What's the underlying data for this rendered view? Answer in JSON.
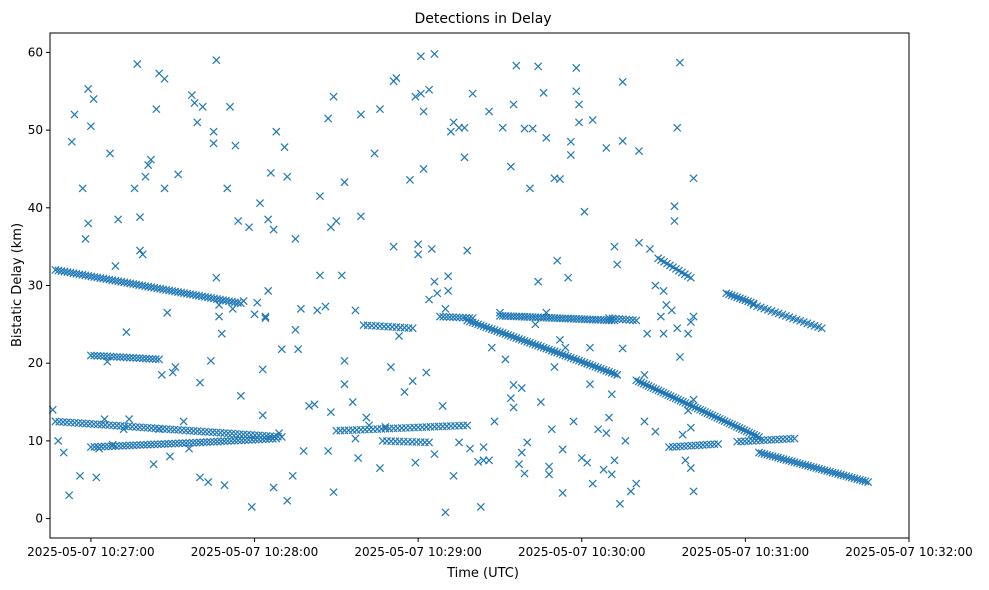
{
  "chart_data": {
    "type": "scatter",
    "title": "Detections in Delay",
    "xlabel": "Time (UTC)",
    "ylabel": "Bistatic Delay (km)",
    "marker": "x",
    "color": "#1f77b4",
    "xlim_seconds_from_102700": [
      -15,
      300
    ],
    "ylim": [
      -2.5,
      62.5
    ],
    "x_ticks": [
      {
        "value": 0,
        "label": "2025-05-07 10:27:00"
      },
      {
        "value": 60,
        "label": "2025-05-07 10:28:00"
      },
      {
        "value": 120,
        "label": "2025-05-07 10:29:00"
      },
      {
        "value": 180,
        "label": "2025-05-07 10:30:00"
      },
      {
        "value": 240,
        "label": "2025-05-07 10:31:00"
      },
      {
        "value": 300,
        "label": "2025-05-07 10:32:00"
      }
    ],
    "y_ticks": [
      {
        "value": 0,
        "label": "0"
      },
      {
        "value": 10,
        "label": "10"
      },
      {
        "value": 20,
        "label": "20"
      },
      {
        "value": 30,
        "label": "30"
      },
      {
        "value": 40,
        "label": "40"
      },
      {
        "value": 50,
        "label": "50"
      },
      {
        "value": 60,
        "label": "60"
      }
    ],
    "tracks": [
      {
        "name": "track-a",
        "t_start": -13,
        "t_end": 55,
        "y_start": 32,
        "y_end": 27.7,
        "step": 1.1
      },
      {
        "name": "track-b",
        "t_start": -13,
        "t_end": 70,
        "y_start": 12.5,
        "y_end": 10.5,
        "step": 1.4
      },
      {
        "name": "track-c",
        "t_start": 0,
        "t_end": 25,
        "y_start": 21,
        "y_end": 20.5,
        "step": 1.2
      },
      {
        "name": "track-d",
        "t_start": 0,
        "t_end": 40,
        "y_start": 9.2,
        "y_end": 9.8,
        "step": 1.3
      },
      {
        "name": "track-e",
        "t_start": 40,
        "t_end": 68,
        "y_start": 9.8,
        "y_end": 10.3,
        "step": 1.3
      },
      {
        "name": "track-f",
        "t_start": 90,
        "t_end": 138,
        "y_start": 11.3,
        "y_end": 12,
        "step": 1.5
      },
      {
        "name": "track-g",
        "t_start": 107,
        "t_end": 124,
        "y_start": 10,
        "y_end": 9.8,
        "step": 1.5
      },
      {
        "name": "track-h",
        "t_start": 100,
        "t_end": 118,
        "y_start": 24.9,
        "y_end": 24.5,
        "step": 1.5
      },
      {
        "name": "track-i",
        "t_start": 128,
        "t_end": 140,
        "y_start": 26,
        "y_end": 25.8,
        "step": 1.2
      },
      {
        "name": "track-j",
        "t_start": 138,
        "t_end": 170,
        "y_start": 25.5,
        "y_end": 21.5,
        "step": 1.0
      },
      {
        "name": "track-k",
        "t_start": 150,
        "t_end": 192,
        "y_start": 26.1,
        "y_end": 25.5,
        "step": 1.0
      },
      {
        "name": "track-l",
        "t_start": 170,
        "t_end": 193,
        "y_start": 21.5,
        "y_end": 18.5,
        "step": 1.0
      },
      {
        "name": "track-m",
        "t_start": 200,
        "t_end": 245,
        "y_start": 17.8,
        "y_end": 10.5,
        "step": 0.9
      },
      {
        "name": "track-n",
        "t_start": 245,
        "t_end": 285,
        "y_start": 8.5,
        "y_end": 4.7,
        "step": 1.0
      },
      {
        "name": "track-o",
        "t_start": 208,
        "t_end": 220,
        "y_start": 33.5,
        "y_end": 31,
        "step": 1.1
      },
      {
        "name": "track-p",
        "t_start": 233,
        "t_end": 243,
        "y_start": 29,
        "y_end": 27.7,
        "step": 1.0
      },
      {
        "name": "track-q",
        "t_start": 243,
        "t_end": 268,
        "y_start": 27.5,
        "y_end": 24.5,
        "step": 1.3
      },
      {
        "name": "track-r",
        "t_start": 212,
        "t_end": 230,
        "y_start": 9.2,
        "y_end": 9.6,
        "step": 1.4
      },
      {
        "name": "track-s",
        "t_start": 237,
        "t_end": 258,
        "y_start": 9.9,
        "y_end": 10.3,
        "step": 1.4
      },
      {
        "name": "track-t",
        "t_start": 190,
        "t_end": 200,
        "y_start": 25.8,
        "y_end": 25.5,
        "step": 1.2
      }
    ],
    "scatter_points": [
      [
        -14,
        14
      ],
      [
        -12,
        10
      ],
      [
        -10,
        8.5
      ],
      [
        -8,
        3
      ],
      [
        -7,
        48.5
      ],
      [
        -6,
        52
      ],
      [
        -4,
        5.5
      ],
      [
        -3,
        42.5
      ],
      [
        -2,
        36
      ],
      [
        -1,
        38
      ],
      [
        -1,
        55.3
      ],
      [
        0,
        50.5
      ],
      [
        1,
        54
      ],
      [
        2,
        5.3
      ],
      [
        3,
        9
      ],
      [
        5,
        12.8
      ],
      [
        6,
        20.2
      ],
      [
        7,
        47
      ],
      [
        8,
        9.5
      ],
      [
        9,
        32.5
      ],
      [
        10,
        38.5
      ],
      [
        12,
        11.5
      ],
      [
        13,
        24
      ],
      [
        14,
        12.8
      ],
      [
        16,
        42.5
      ],
      [
        17,
        58.5
      ],
      [
        18,
        34.5
      ],
      [
        18,
        38.8
      ],
      [
        19,
        34
      ],
      [
        20,
        44
      ],
      [
        21,
        45.5
      ],
      [
        22,
        46.2
      ],
      [
        23,
        7
      ],
      [
        24,
        52.7
      ],
      [
        25,
        57.3
      ],
      [
        25,
        11.5
      ],
      [
        26,
        18.5
      ],
      [
        27,
        56.6
      ],
      [
        27,
        42.5
      ],
      [
        28,
        26.5
      ],
      [
        29,
        8
      ],
      [
        30,
        18.8
      ],
      [
        31,
        19.5
      ],
      [
        32,
        44.3
      ],
      [
        34,
        12.5
      ],
      [
        36,
        9
      ],
      [
        37,
        54.5
      ],
      [
        38,
        53.5
      ],
      [
        39,
        51
      ],
      [
        40,
        17.5
      ],
      [
        40,
        5.3
      ],
      [
        41,
        53
      ],
      [
        43,
        4.7
      ],
      [
        44,
        20.3
      ],
      [
        45,
        49.8
      ],
      [
        45,
        48.3
      ],
      [
        46,
        31
      ],
      [
        46,
        59
      ],
      [
        47,
        27.5
      ],
      [
        47,
        26
      ],
      [
        48,
        23.8
      ],
      [
        49,
        4.3
      ],
      [
        50,
        42.5
      ],
      [
        51,
        53
      ],
      [
        52,
        27
      ],
      [
        53,
        48
      ],
      [
        54,
        38.3
      ],
      [
        55,
        15.8
      ],
      [
        56,
        28
      ],
      [
        58,
        37.5
      ],
      [
        59,
        1.5
      ],
      [
        60,
        26.3
      ],
      [
        61,
        27.8
      ],
      [
        62,
        40.6
      ],
      [
        63,
        19.2
      ],
      [
        63,
        13.3
      ],
      [
        64,
        26
      ],
      [
        64,
        25.8
      ],
      [
        65,
        38.5
      ],
      [
        65,
        29.3
      ],
      [
        66,
        44.5
      ],
      [
        67,
        37.2
      ],
      [
        67,
        4
      ],
      [
        68,
        49.8
      ],
      [
        69,
        11
      ],
      [
        70,
        21.8
      ],
      [
        71,
        47.8
      ],
      [
        72,
        44
      ],
      [
        72,
        2.3
      ],
      [
        74,
        5.5
      ],
      [
        75,
        36
      ],
      [
        75,
        24.3
      ],
      [
        76,
        21.8
      ],
      [
        77,
        27
      ],
      [
        78,
        8.7
      ],
      [
        80,
        14.5
      ],
      [
        82,
        14.7
      ],
      [
        83,
        26.8
      ],
      [
        84,
        41.5
      ],
      [
        84,
        31.3
      ],
      [
        86,
        27.3
      ],
      [
        87,
        8.7
      ],
      [
        87,
        51.5
      ],
      [
        88,
        37.5
      ],
      [
        88,
        13.7
      ],
      [
        89,
        3.4
      ],
      [
        89,
        54.3
      ],
      [
        90,
        38.3
      ],
      [
        92,
        31.3
      ],
      [
        93,
        43.3
      ],
      [
        93,
        20.3
      ],
      [
        93,
        17.3
      ],
      [
        96,
        15
      ],
      [
        97,
        26.8
      ],
      [
        97,
        10.3
      ],
      [
        98,
        7.8
      ],
      [
        99,
        38.9
      ],
      [
        99,
        52
      ],
      [
        101,
        13
      ],
      [
        102,
        12
      ],
      [
        104,
        47
      ],
      [
        106,
        6.5
      ],
      [
        106,
        52.7
      ],
      [
        108,
        11.8
      ],
      [
        110,
        19.5
      ],
      [
        111,
        35
      ],
      [
        111,
        56.3
      ],
      [
        112,
        56.7
      ],
      [
        113,
        23.5
      ],
      [
        115,
        16.3
      ],
      [
        117,
        43.6
      ],
      [
        118,
        17.7
      ],
      [
        119,
        7.2
      ],
      [
        119,
        54.3
      ],
      [
        120,
        35.3
      ],
      [
        120,
        34
      ],
      [
        121,
        59.5
      ],
      [
        121,
        54.7
      ],
      [
        122,
        52.4
      ],
      [
        122,
        45
      ],
      [
        123,
        18.8
      ],
      [
        124,
        28.2
      ],
      [
        124,
        55.2
      ],
      [
        125,
        34.7
      ],
      [
        126,
        30.5
      ],
      [
        126,
        59.8
      ],
      [
        126,
        8.3
      ],
      [
        127,
        29
      ],
      [
        129,
        14.5
      ],
      [
        130,
        0.8
      ],
      [
        130,
        27
      ],
      [
        131,
        29.3
      ],
      [
        131,
        31.2
      ],
      [
        132,
        49.8
      ],
      [
        133,
        5.5
      ],
      [
        133,
        51
      ],
      [
        135,
        9.8
      ],
      [
        135,
        50.3
      ],
      [
        137,
        50.3
      ],
      [
        137,
        46.5
      ],
      [
        138,
        34.5
      ],
      [
        139,
        9
      ],
      [
        140,
        54.7
      ],
      [
        142,
        7.3
      ],
      [
        143,
        1.5
      ],
      [
        144,
        7.5
      ],
      [
        144,
        9.2
      ],
      [
        146,
        52.4
      ],
      [
        146,
        7.5
      ],
      [
        147,
        22
      ],
      [
        148,
        12.5
      ],
      [
        150,
        26.5
      ],
      [
        151,
        50.3
      ],
      [
        152,
        20.5
      ],
      [
        154,
        15.5
      ],
      [
        154,
        45.3
      ],
      [
        155,
        53.3
      ],
      [
        155,
        17.2
      ],
      [
        155,
        14.3
      ],
      [
        156,
        58.3
      ],
      [
        157,
        7
      ],
      [
        158,
        8.5
      ],
      [
        158,
        16.8
      ],
      [
        159,
        5.8
      ],
      [
        159,
        50.2
      ],
      [
        160,
        9.8
      ],
      [
        161,
        42.5
      ],
      [
        162,
        50.2
      ],
      [
        163,
        25
      ],
      [
        164,
        30.5
      ],
      [
        164,
        58.2
      ],
      [
        165,
        15
      ],
      [
        166,
        54.8
      ],
      [
        167,
        26.5
      ],
      [
        167,
        49
      ],
      [
        168,
        6.7
      ],
      [
        168,
        5.7
      ],
      [
        169,
        11.5
      ],
      [
        170,
        43.8
      ],
      [
        170,
        19.5
      ],
      [
        171,
        33.2
      ],
      [
        172,
        43.7
      ],
      [
        172,
        23
      ],
      [
        173,
        3.3
      ],
      [
        173,
        8.9
      ],
      [
        174,
        22
      ],
      [
        175,
        31
      ],
      [
        176,
        48.5
      ],
      [
        176,
        46.8
      ],
      [
        177,
        12.5
      ],
      [
        178,
        58
      ],
      [
        178,
        55
      ],
      [
        179,
        53.3
      ],
      [
        179,
        51
      ],
      [
        180,
        7.8
      ],
      [
        181,
        39.5
      ],
      [
        182,
        7.2
      ],
      [
        183,
        22
      ],
      [
        183,
        17.3
      ],
      [
        184,
        4.5
      ],
      [
        184,
        51.3
      ],
      [
        186,
        11.5
      ],
      [
        188,
        6.3
      ],
      [
        189,
        47.7
      ],
      [
        189,
        11
      ],
      [
        190,
        13
      ],
      [
        191,
        16
      ],
      [
        191,
        5.7
      ],
      [
        192,
        7.5
      ],
      [
        192,
        35
      ],
      [
        193,
        32.7
      ],
      [
        193,
        18.5
      ],
      [
        194,
        1.9
      ],
      [
        195,
        56.2
      ],
      [
        195,
        48.6
      ],
      [
        195,
        21.9
      ],
      [
        196,
        10
      ],
      [
        198,
        3.5
      ],
      [
        200,
        4.5
      ],
      [
        201,
        47.3
      ],
      [
        201,
        35.5
      ],
      [
        203,
        12.5
      ],
      [
        203,
        18.5
      ],
      [
        204,
        23.8
      ],
      [
        205,
        34.7
      ],
      [
        207,
        30
      ],
      [
        207,
        11.2
      ],
      [
        209,
        26
      ],
      [
        210,
        29.3
      ],
      [
        210,
        23.8
      ],
      [
        211,
        27.5
      ],
      [
        213,
        26.8
      ],
      [
        214,
        38.3
      ],
      [
        214,
        40.2
      ],
      [
        215,
        50.3
      ],
      [
        215,
        24.5
      ],
      [
        216,
        20.8
      ],
      [
        216,
        58.7
      ],
      [
        217,
        10.8
      ],
      [
        218,
        7.5
      ],
      [
        219,
        13.9
      ],
      [
        219,
        23.8
      ],
      [
        220,
        6.5
      ],
      [
        220,
        11.7
      ],
      [
        221,
        3.5
      ],
      [
        221,
        15.3
      ],
      [
        221,
        43.8
      ],
      [
        221,
        26
      ],
      [
        220,
        25.3
      ]
    ]
  }
}
